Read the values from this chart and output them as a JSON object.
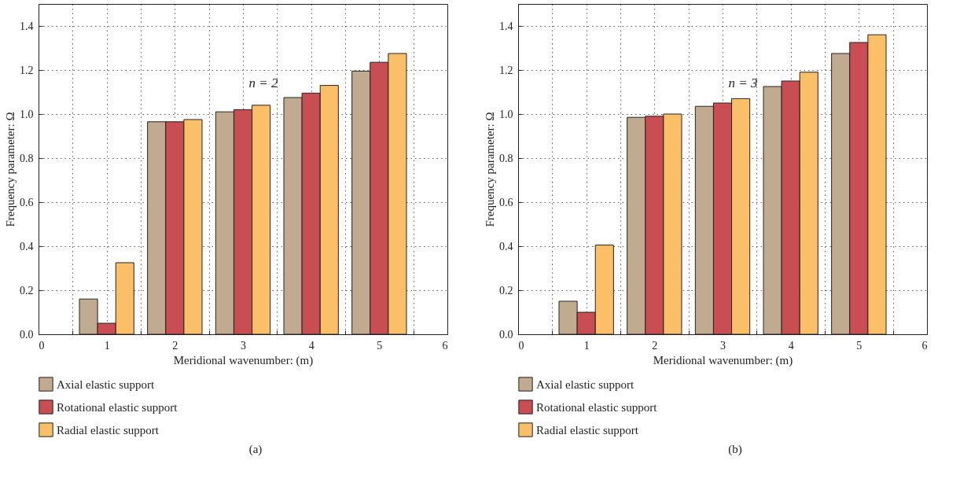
{
  "chart_data": [
    {
      "type": "bar",
      "xlabel": "Meridional wavenumber: (m)",
      "ylabel": "Frequency parameter: Ω",
      "x": [
        1,
        2,
        3,
        4,
        5
      ],
      "xlim": [
        0,
        6
      ],
      "xticks": [
        0,
        {
          "value": 0.5,
          "label": null
        },
        1,
        {
          "value": 1.5,
          "label": null
        },
        2,
        {
          "value": 2.5,
          "label": null
        },
        3,
        {
          "value": 3.5,
          "label": null
        },
        4,
        {
          "value": 4.5,
          "label": null
        },
        5,
        {
          "value": 5.5,
          "label": null
        },
        6
      ],
      "ylim": [
        0,
        1.5
      ],
      "yticks": [
        {
          "value": 0,
          "label": "0.0"
        },
        {
          "value": 0.2,
          "label": "0.2"
        },
        {
          "value": 0.4,
          "label": "0.4"
        },
        {
          "value": 0.6,
          "label": "0.6"
        },
        {
          "value": 0.8,
          "label": "0.8"
        },
        {
          "value": 1.0,
          "label": "1.0"
        },
        {
          "value": 1.2,
          "label": "1.2"
        },
        {
          "value": 1.4,
          "label": "1.4"
        }
      ],
      "grid": true,
      "legend": "bottom",
      "series": [
        {
          "name": "Axial elastic support",
          "color": "#c1ab90",
          "values": [
            0.16,
            0.965,
            1.01,
            1.075,
            1.195
          ]
        },
        {
          "name": "Rotational elastic support",
          "color": "#c84e53",
          "values": [
            0.05,
            0.965,
            1.02,
            1.095,
            1.235
          ]
        },
        {
          "name": "Radial elastic support",
          "color": "#fbbf68",
          "values": [
            0.325,
            0.975,
            1.04,
            1.13,
            1.275
          ]
        }
      ],
      "annotations": [
        "n = 2",
        "(a)"
      ]
    },
    {
      "type": "bar",
      "xlabel": "Meridional wavenumber: (m)",
      "ylabel": "Frequency parameter: Ω",
      "x": [
        1,
        2,
        3,
        4,
        5
      ],
      "xlim": [
        0,
        6
      ],
      "xticks": [
        0,
        {
          "value": 0.5,
          "label": null
        },
        1,
        {
          "value": 1.5,
          "label": null
        },
        2,
        {
          "value": 2.5,
          "label": null
        },
        3,
        {
          "value": 3.5,
          "label": null
        },
        4,
        {
          "value": 4.5,
          "label": null
        },
        5,
        {
          "value": 5.5,
          "label": null
        },
        6
      ],
      "ylim": [
        0,
        1.5
      ],
      "yticks": [
        {
          "value": 0,
          "label": "0.0"
        },
        {
          "value": 0.2,
          "label": "0.2"
        },
        {
          "value": 0.4,
          "label": "0.4"
        },
        {
          "value": 0.6,
          "label": "0.6"
        },
        {
          "value": 0.8,
          "label": "0.8"
        },
        {
          "value": 1.0,
          "label": "1.0"
        },
        {
          "value": 1.2,
          "label": "1.2"
        },
        {
          "value": 1.4,
          "label": "1.4"
        }
      ],
      "grid": true,
      "legend": "bottom",
      "series": [
        {
          "name": "Axial elastic support",
          "color": "#c1ab90",
          "values": [
            0.15,
            0.985,
            1.035,
            1.125,
            1.275
          ]
        },
        {
          "name": "Rotational elastic support",
          "color": "#c84e53",
          "values": [
            0.1,
            0.99,
            1.05,
            1.15,
            1.325
          ]
        },
        {
          "name": "Radial elastic support",
          "color": "#fbbf68",
          "values": [
            0.405,
            1.0,
            1.07,
            1.19,
            1.36
          ]
        }
      ],
      "annotations": [
        "n = 3",
        "(b)"
      ]
    }
  ]
}
